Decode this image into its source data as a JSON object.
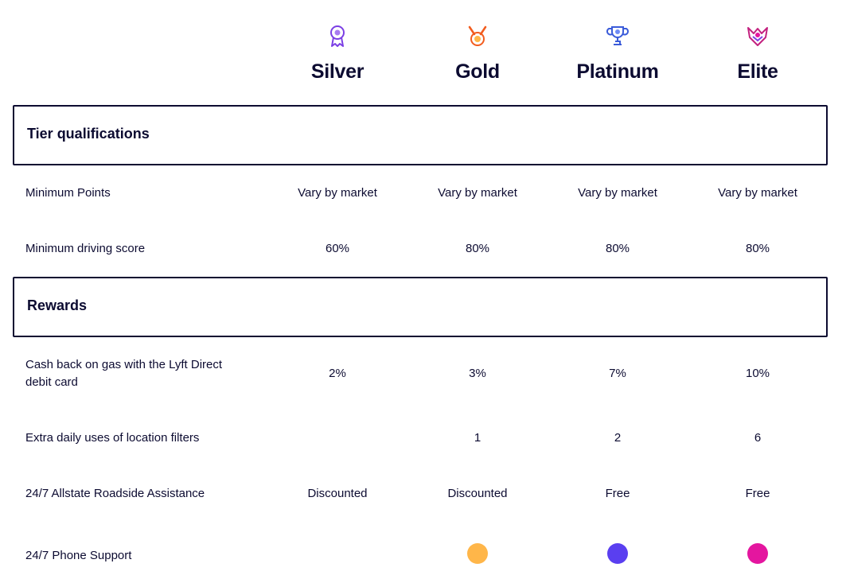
{
  "tiers": [
    {
      "name": "Silver",
      "icon": "medal-ribbon-icon",
      "color": "#7b3fe4"
    },
    {
      "name": "Gold",
      "icon": "medal-laurel-icon",
      "color": "#f25c1e"
    },
    {
      "name": "Platinum",
      "icon": "trophy-icon",
      "color": "#3a5bd9"
    },
    {
      "name": "Elite",
      "icon": "shield-wings-icon",
      "color": "#c3217f"
    }
  ],
  "sections": {
    "qualifications": {
      "title": "Tier qualifications"
    },
    "rewards": {
      "title": "Rewards"
    }
  },
  "rows": {
    "min_points": {
      "label": "Minimum Points",
      "values": [
        "Vary by market",
        "Vary by market",
        "Vary by market",
        "Vary by market"
      ]
    },
    "min_driving_score": {
      "label": "Minimum driving score",
      "values": [
        "60%",
        "80%",
        "80%",
        "80%"
      ]
    },
    "cash_back": {
      "label": "Cash back on gas with the Lyft Direct debit card",
      "values": [
        "2%",
        "3%",
        "7%",
        "10%"
      ]
    },
    "location_filters": {
      "label": "Extra daily uses of location filters",
      "values": [
        "",
        "1",
        "2",
        "6"
      ]
    },
    "roadside": {
      "label": "24/7 Allstate Roadside Assistance",
      "values": [
        "Discounted",
        "Discounted",
        "Free",
        "Free"
      ]
    },
    "phone_support": {
      "label": "24/7 Phone Support",
      "included": [
        false,
        true,
        true,
        true
      ],
      "dot_colors": [
        "",
        "#ffb649",
        "#5a3ff0",
        "#e4169f"
      ]
    }
  }
}
